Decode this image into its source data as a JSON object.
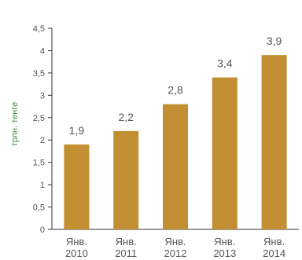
{
  "chart_data": {
    "type": "bar",
    "categories": [
      "Янв. 2010",
      "Янв. 2011",
      "Янв. 2012",
      "Янв. 2013",
      "Янв. 2014"
    ],
    "category_lines": [
      [
        "Янв.",
        "2010"
      ],
      [
        "Янв.",
        "2011"
      ],
      [
        "Янв.",
        "2012"
      ],
      [
        "Янв.",
        "2013"
      ],
      [
        "Янв.",
        "2014"
      ]
    ],
    "values": [
      1.9,
      2.2,
      2.8,
      3.4,
      3.9
    ],
    "data_labels": [
      "1,9",
      "2,2",
      "2,8",
      "3,4",
      "3,9"
    ],
    "ylabel": "трлн. тенге",
    "ylim": [
      0,
      4.5
    ],
    "yticks": [
      0,
      0.5,
      1,
      1.5,
      2,
      2.5,
      3,
      3.5,
      4,
      4.5
    ],
    "ytick_labels": [
      "0",
      "0,5",
      "1",
      "1,5",
      "2",
      "2,5",
      "3",
      "3,5",
      "4",
      "4,5"
    ],
    "grid": false,
    "colors": {
      "bar": "#C28F33",
      "axis": "#333333",
      "text": "#555555",
      "ylabel": "#3F8F3F"
    }
  }
}
